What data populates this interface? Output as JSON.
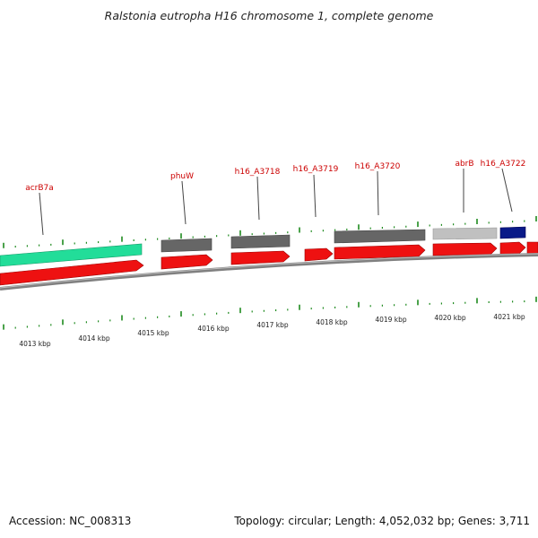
{
  "header": {
    "title": "Ralstonia eutropha H16 chromosome 1, complete genome"
  },
  "footer": {
    "accession": "Accession: NC_008313",
    "topology": "Topology: circular; Length: 4,052,032 bp; Genes: 3,711"
  },
  "colors": {
    "cds_forward": "#ee1111",
    "feature_gray": "#666666",
    "feature_light_gray": "#c0c0c0",
    "feature_teal": "#22dd99",
    "feature_navy": "#0a1a88",
    "tick": "#1e8a1e",
    "label_red": "#cc0000",
    "backbone": "#808080"
  },
  "genes": [
    {
      "label": "acrB7a"
    },
    {
      "label": "phuW"
    },
    {
      "label": "h16_A3718"
    },
    {
      "label": "h16_A3719"
    },
    {
      "label": "h16_A3720"
    },
    {
      "label": "abrB"
    },
    {
      "label": "h16_A3722"
    }
  ],
  "kbp_ticks": [
    {
      "label": "4013 kbp"
    },
    {
      "label": "4014 kbp"
    },
    {
      "label": "4015 kbp"
    },
    {
      "label": "4016 kbp"
    },
    {
      "label": "4017 kbp"
    },
    {
      "label": "4018 kbp"
    },
    {
      "label": "4019 kbp"
    },
    {
      "label": "4020 kbp"
    },
    {
      "label": "4021 kbp"
    }
  ]
}
